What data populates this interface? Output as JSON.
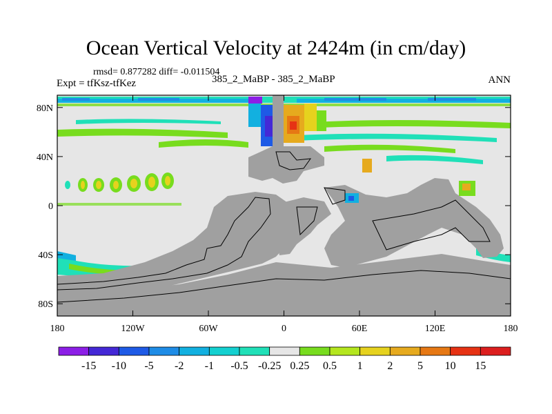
{
  "chart_data": {
    "type": "heatmap",
    "title": "Ocean Vertical Velocity at 2424m (in cm/day)",
    "stats": {
      "text": "rmsd= 0.877282 diff= -0.011504",
      "rmsd": 0.877282,
      "diff": -0.011504
    },
    "experiment_label": "Expt = tfKsz-tfKez",
    "cases_label": "385_2_MaBP - 385_2_MaBP",
    "season_label": "ANN",
    "x_axis": {
      "range": [
        -180,
        180
      ],
      "ticks": [
        {
          "value": -180,
          "label": "180"
        },
        {
          "value": -120,
          "label": "120W"
        },
        {
          "value": -60,
          "label": "60W"
        },
        {
          "value": 0,
          "label": "0"
        },
        {
          "value": 60,
          "label": "60E"
        },
        {
          "value": 120,
          "label": "120E"
        },
        {
          "value": 180,
          "label": "180"
        }
      ]
    },
    "y_axis": {
      "range": [
        -90,
        90
      ],
      "ticks": [
        {
          "value": 80,
          "label": "80N"
        },
        {
          "value": 40,
          "label": "40N"
        },
        {
          "value": 0,
          "label": "0"
        },
        {
          "value": -40,
          "label": "40S"
        },
        {
          "value": -80,
          "label": "80S"
        }
      ]
    },
    "colorbar": {
      "levels": [
        "-15",
        "-10",
        "-5",
        "-2",
        "-1",
        "-0.5",
        "-0.25",
        "0.25",
        "0.5",
        "1",
        "2",
        "5",
        "10",
        "15"
      ],
      "colors": [
        "#8c1ee6",
        "#4428d6",
        "#1e5ae6",
        "#1e8ce6",
        "#12b0e0",
        "#14d0d0",
        "#20e0b8",
        "#e6e6e6",
        "#78dc1e",
        "#b4e61e",
        "#e6d21e",
        "#e6aa1e",
        "#e67814",
        "#e63214",
        "#dc1e1e"
      ]
    },
    "land_color": "#a0a0a0",
    "background_field_color": "#e6e6e6"
  }
}
